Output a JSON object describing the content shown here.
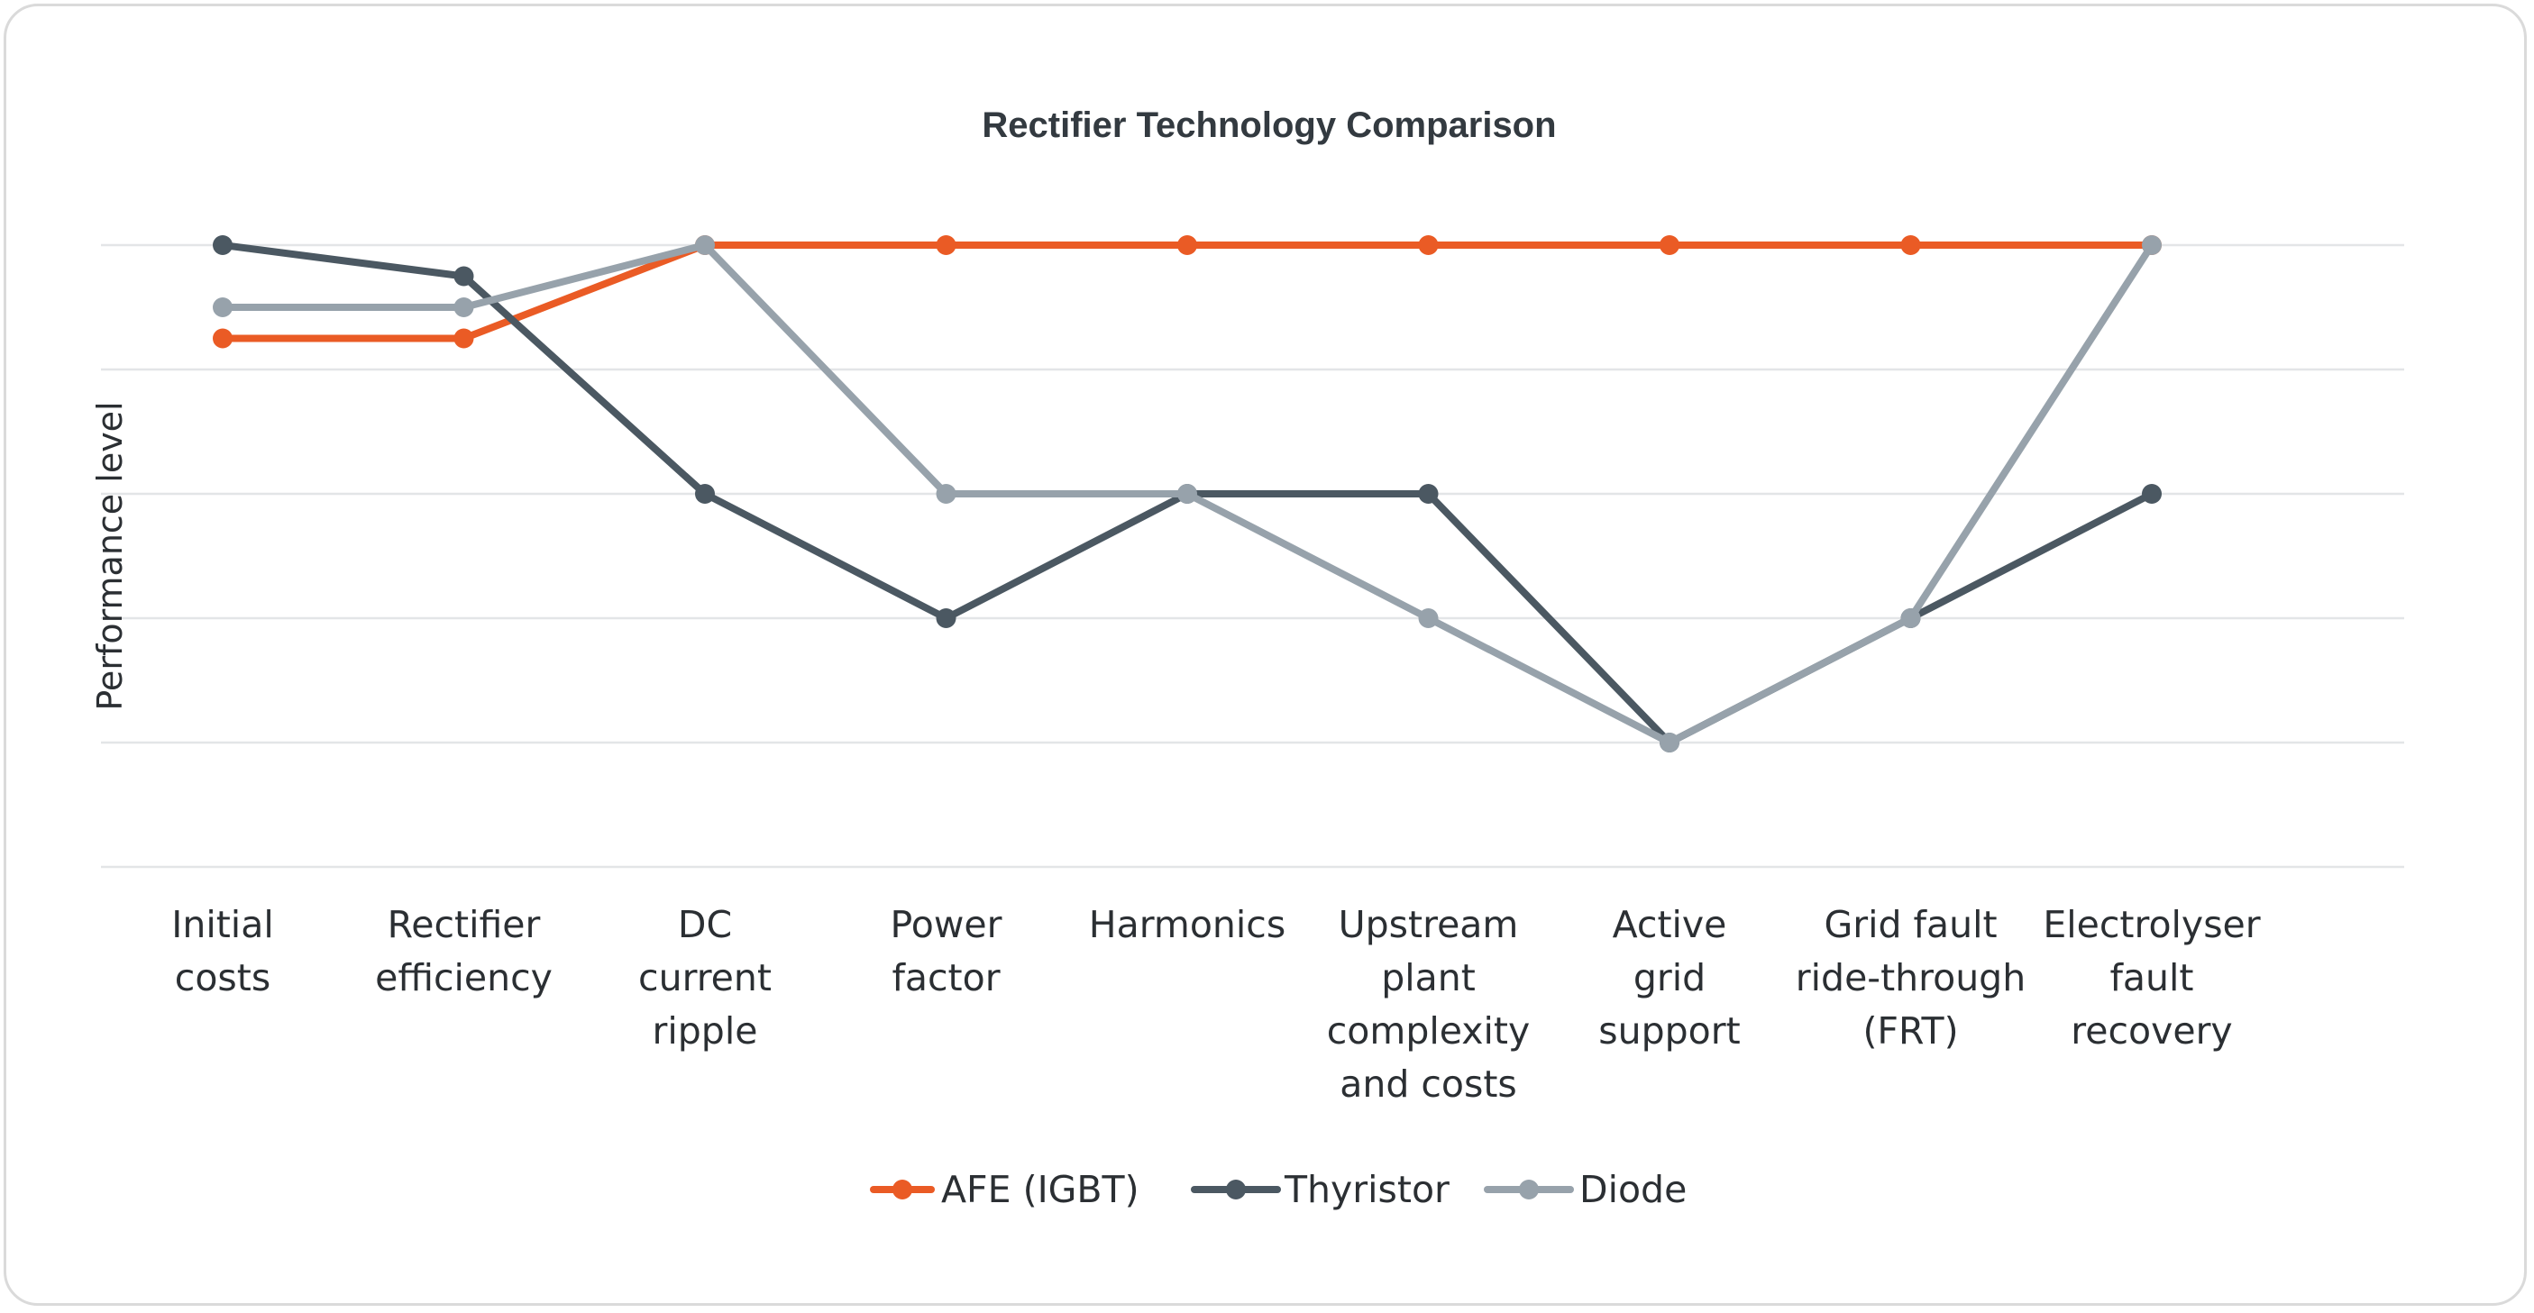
{
  "chart_data": {
    "type": "line",
    "title": "Rectifier Technology Comparison",
    "ylabel": "Performance level",
    "xlabel": "",
    "ylim": [
      0,
      5
    ],
    "grid": true,
    "legend_position": "bottom",
    "categories": [
      [
        "Initial",
        "costs"
      ],
      [
        "Rectifier",
        "efficiency"
      ],
      [
        "DC",
        "current",
        "ripple"
      ],
      [
        "Power",
        "factor"
      ],
      [
        "Harmonics"
      ],
      [
        "Upstream",
        "plant",
        "complexity",
        "and costs"
      ],
      [
        "Active",
        "grid",
        "support"
      ],
      [
        "Grid fault",
        "ride-through",
        "(FRT)"
      ],
      [
        "Electrolyser",
        "fault",
        "recovery"
      ]
    ],
    "series": [
      {
        "name": "AFE (IGBT)",
        "color": "#ea5b25",
        "values": [
          4.25,
          4.25,
          5,
          5,
          5,
          5,
          5,
          5,
          5
        ]
      },
      {
        "name": "Thyristor",
        "color": "#4b5862",
        "values": [
          5,
          4.75,
          3,
          2,
          3,
          3,
          1,
          2,
          3
        ]
      },
      {
        "name": "Diode",
        "color": "#97a2ab",
        "values": [
          4.5,
          4.5,
          5,
          3,
          3,
          2,
          1,
          2,
          5
        ]
      }
    ]
  }
}
